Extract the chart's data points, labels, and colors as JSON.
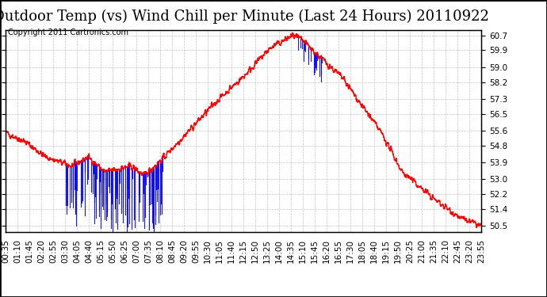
{
  "title": "Outdoor Temp (vs) Wind Chill per Minute (Last 24 Hours) 20110922",
  "copyright": "Copyright 2011 Cartronics.com",
  "y_ticks": [
    50.5,
    51.4,
    52.2,
    53.0,
    53.9,
    54.8,
    55.6,
    56.5,
    57.3,
    58.2,
    59.0,
    59.9,
    60.7
  ],
  "y_min": 50.5,
  "y_max": 60.7,
  "x_labels": [
    "00:35",
    "01:10",
    "01:45",
    "02:20",
    "02:55",
    "03:30",
    "04:05",
    "04:40",
    "05:15",
    "05:50",
    "06:25",
    "07:00",
    "07:35",
    "08:10",
    "08:45",
    "09:20",
    "09:55",
    "10:30",
    "11:05",
    "11:40",
    "12:15",
    "12:50",
    "13:25",
    "14:00",
    "14:35",
    "15:10",
    "15:45",
    "16:20",
    "16:55",
    "17:30",
    "18:05",
    "18:40",
    "19:15",
    "19:50",
    "20:25",
    "21:00",
    "21:35",
    "22:10",
    "22:45",
    "23:20",
    "23:55"
  ],
  "background_color": "#ffffff",
  "grid_color": "#aaaaaa",
  "red_line_color": "#ff0000",
  "blue_line_color": "#0000ff",
  "title_fontsize": 13,
  "copyright_fontsize": 7,
  "tick_fontsize": 7.5
}
